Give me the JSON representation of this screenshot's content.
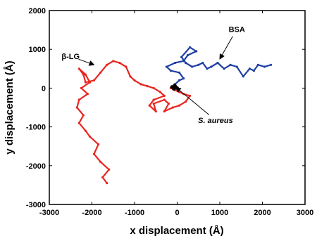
{
  "chart_data": {
    "type": "line",
    "title": "",
    "xlabel": "x displacement (Å)",
    "ylabel": "y displacement (Å)",
    "xlim": [
      -3000,
      3000
    ],
    "ylim": [
      -3000,
      2000
    ],
    "xticks": [
      "-3000",
      "-2000",
      "-1000",
      "0",
      "1000",
      "2000",
      "3000"
    ],
    "yticks": [
      "2000",
      "1000",
      "0",
      "-1000",
      "-2000",
      "-3000"
    ],
    "grid": false,
    "series": [
      {
        "name": "β-LG",
        "color": "#e8261f",
        "x": [
          -1650,
          -1750,
          -1600,
          -1800,
          -1950,
          -1850,
          -2050,
          -2150,
          -2300,
          -2200,
          -2350,
          -2300,
          -2100,
          -2250,
          -2050,
          -2150,
          -2300,
          -2200,
          -2150,
          -1950,
          -1800,
          -1650,
          -1500,
          -1350,
          -1200,
          -1100,
          -1000,
          -850,
          -700,
          -550,
          -400,
          -300,
          -550,
          -650,
          -500,
          -550,
          -300,
          -200,
          -300,
          -100,
          50,
          200,
          300,
          150,
          50,
          -50,
          -150
        ],
        "y": [
          -2450,
          -2300,
          -2100,
          -1900,
          -1700,
          -1450,
          -1250,
          -1100,
          -900,
          -700,
          -500,
          -300,
          -150,
          0,
          150,
          350,
          500,
          350,
          150,
          200,
          400,
          600,
          700,
          650,
          550,
          300,
          200,
          100,
          50,
          0,
          -100,
          -200,
          -300,
          -450,
          -600,
          -400,
          -300,
          -400,
          -600,
          -500,
          -450,
          -350,
          -200,
          -150,
          -100,
          -50,
          0
        ]
      },
      {
        "name": "BSA",
        "color": "#1f3fa3",
        "x": [
          -100,
          -50,
          50,
          150,
          50,
          -150,
          -250,
          -50,
          150,
          250,
          450,
          300,
          100,
          200,
          350,
          500,
          600,
          700,
          800,
          950,
          1100,
          1250,
          1400,
          1550,
          1700,
          1800,
          1900,
          2050,
          2200
        ],
        "y": [
          0,
          100,
          200,
          250,
          400,
          450,
          550,
          650,
          700,
          850,
          950,
          1050,
          800,
          650,
          550,
          600,
          650,
          500,
          550,
          650,
          500,
          600,
          550,
          300,
          500,
          450,
          600,
          550,
          600
        ]
      },
      {
        "name": "S. aureus",
        "color": "#000000",
        "x": [
          -120,
          -80,
          -40,
          0,
          -60,
          -100
        ],
        "y": [
          30,
          -20,
          40,
          0,
          70,
          10
        ]
      }
    ],
    "annotations": [
      {
        "text": "β-LG",
        "italic": false,
        "text_x": -2500,
        "text_y": 750,
        "arrow_to_x": -1950,
        "arrow_to_y": 600
      },
      {
        "text": "BSA",
        "italic": false,
        "text_x": 1400,
        "text_y": 1450,
        "arrow_to_x": 1000,
        "arrow_to_y": 750
      },
      {
        "text": "S. aureus",
        "italic": true,
        "text_x": 900,
        "text_y": -900,
        "arrow_to_x": -30,
        "arrow_to_y": 20
      }
    ]
  }
}
